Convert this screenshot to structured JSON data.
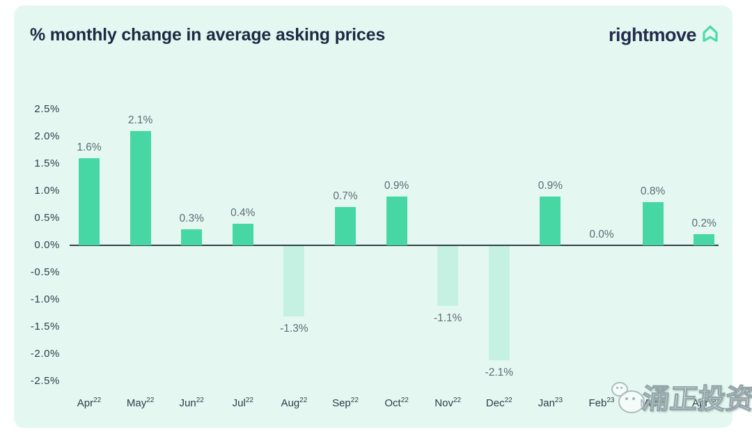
{
  "header": {
    "title": "% monthly change in average asking prices",
    "logo": {
      "text": "rightmove",
      "icon": "rightmove-house-icon",
      "brand_navy": "#252b4e",
      "brand_teal": "#4ed9ab"
    }
  },
  "chart_data": {
    "type": "bar",
    "title": "% monthly change in average asking prices",
    "categories": [
      {
        "month": "Apr",
        "year": "22"
      },
      {
        "month": "May",
        "year": "22"
      },
      {
        "month": "Jun",
        "year": "22"
      },
      {
        "month": "Jul",
        "year": "22"
      },
      {
        "month": "Aug",
        "year": "22"
      },
      {
        "month": "Sep",
        "year": "22"
      },
      {
        "month": "Oct",
        "year": "22"
      },
      {
        "month": "Nov",
        "year": "22"
      },
      {
        "month": "Dec",
        "year": "22"
      },
      {
        "month": "Jan",
        "year": "23"
      },
      {
        "month": "Feb",
        "year": "23"
      },
      {
        "month": "Mar",
        "year": "23"
      },
      {
        "month": "Apr",
        "year": "23"
      }
    ],
    "values": [
      1.6,
      2.1,
      0.3,
      0.4,
      -1.3,
      0.7,
      0.9,
      -1.1,
      -2.1,
      0.9,
      0.0,
      0.8,
      0.2
    ],
    "value_labels": [
      "1.6%",
      "2.1%",
      "0.3%",
      "0.4%",
      "-1.3%",
      "0.7%",
      "0.9%",
      "-1.1%",
      "-2.1%",
      "0.9%",
      "0.0%",
      "0.8%",
      "0.2%"
    ],
    "y_ticks": [
      "2.5%",
      "2.0%",
      "1.5%",
      "1.0%",
      "0.5%",
      "0.0%",
      "-0.5%",
      "-1.0%",
      "-1.5%",
      "-2.0%",
      "-2.5%"
    ],
    "ylim": [
      -2.5,
      2.5
    ],
    "grid": false,
    "legend": false,
    "colors": {
      "card_background": "#e4f8f1",
      "positive_bar": "#47d7a5",
      "negative_bar": "#c5f1e3",
      "axis_line": "#2f3e48",
      "tick_label": "#2d3c48",
      "value_label": "#5d6b74",
      "title_text": "#1c2a44"
    }
  },
  "watermark": {
    "icon": "wechat-icon",
    "text": "涌正投资"
  }
}
